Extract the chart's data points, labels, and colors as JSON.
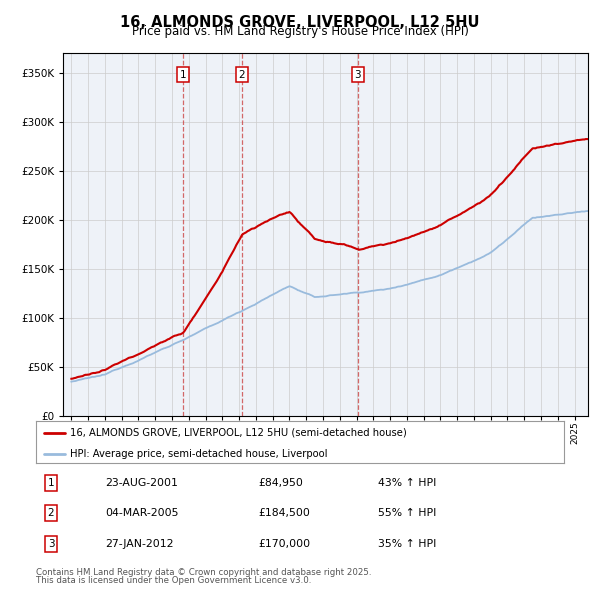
{
  "title": "16, ALMONDS GROVE, LIVERPOOL, L12 5HU",
  "subtitle": "Price paid vs. HM Land Registry's House Price Index (HPI)",
  "legend_line1": "16, ALMONDS GROVE, LIVERPOOL, L12 5HU (semi-detached house)",
  "legend_line2": "HPI: Average price, semi-detached house, Liverpool",
  "footer1": "Contains HM Land Registry data © Crown copyright and database right 2025.",
  "footer2": "This data is licensed under the Open Government Licence v3.0.",
  "transactions": [
    {
      "num": 1,
      "date": "23-AUG-2001",
      "price": 84950,
      "hpi_change": "43% ↑ HPI",
      "year": 2001.64
    },
    {
      "num": 2,
      "date": "04-MAR-2005",
      "price": 184500,
      "hpi_change": "55% ↑ HPI",
      "year": 2005.17
    },
    {
      "num": 3,
      "date": "27-JAN-2012",
      "price": 170000,
      "hpi_change": "35% ↑ HPI",
      "year": 2012.07
    }
  ],
  "property_color": "#cc0000",
  "hpi_color": "#99bbdd",
  "vline_color": "#cc4444",
  "background_color": "#eef2f8",
  "grid_color": "#cccccc",
  "ylim_max": 370000,
  "ytick_step": 50000,
  "xlim_start": 1994.5,
  "xlim_end": 2025.8,
  "xtick_start": 1995,
  "xtick_end": 2025
}
